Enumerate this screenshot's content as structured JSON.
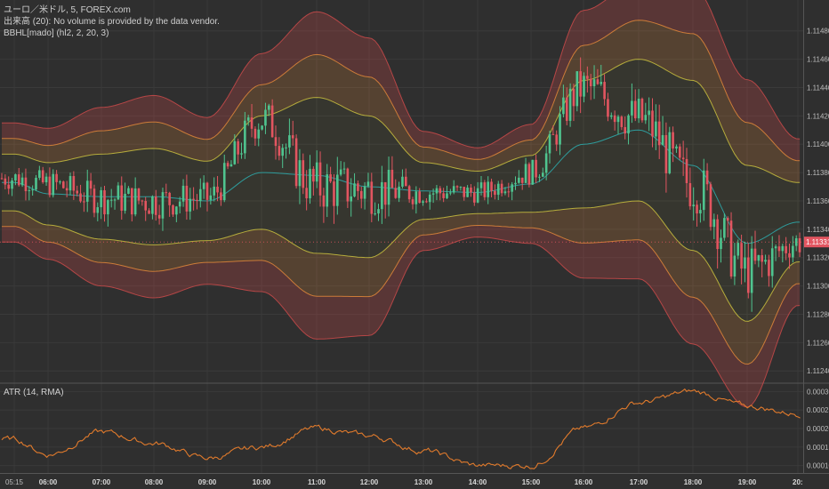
{
  "legend": {
    "symbol": "ユーロ／米ドル, 5, FOREX.com",
    "volume": "出来高 (20): No volume is provided by the data vendor.",
    "indicator": "BBHL[mado] (hl2, 2, 20, 3)",
    "atr": "ATR (14, RMA)"
  },
  "colors": {
    "background": "#2f2f2f",
    "up": "#4fc48f",
    "down": "#e25560",
    "band_inner": "#c9c03e",
    "band_mid": "#e0873a",
    "band_outer": "#c94a4a",
    "basis": "#2e9c9c",
    "atr_line": "#e07a2c"
  },
  "price_axis": {
    "ticks": [
      "1.11480",
      "1.11460",
      "1.11440",
      "1.11420",
      "1.11400",
      "1.11380",
      "1.11360",
      "1.11340",
      "1.11320",
      "1.11300",
      "1.11280",
      "1.11260",
      "1.11240"
    ],
    "current_price": "1.11331"
  },
  "atr_axis": {
    "ticks": [
      "0.00030",
      "0.00025",
      "0.00020",
      "0.00015",
      "0.00010"
    ]
  },
  "time_axis": {
    "labels": [
      "05:15",
      "06:00",
      "07:00",
      "08:00",
      "09:00",
      "10:00",
      "11:00",
      "12:00",
      "13:00",
      "14:00",
      "15:00",
      "16:00",
      "17:00",
      "18:00",
      "19:00",
      "20:"
    ]
  },
  "chart_data": [
    {
      "type": "candlestick",
      "symbol": "EUR/USD 5m",
      "ylim": [
        1.11232,
        1.11498
      ],
      "x": [
        "05:15",
        "06:00",
        "07:00",
        "08:00",
        "09:00",
        "10:00",
        "11:00",
        "12:00",
        "13:00",
        "14:00",
        "15:00",
        "16:00",
        "17:00",
        "18:00",
        "19:00",
        "20:00"
      ],
      "close": [
        1.11376,
        1.11372,
        1.11362,
        1.1136,
        1.11362,
        1.11418,
        1.1137,
        1.11368,
        1.11366,
        1.11366,
        1.1138,
        1.1144,
        1.11418,
        1.11372,
        1.1131,
        1.11331
      ],
      "basis": [
        1.11373,
        1.11365,
        1.11363,
        1.11363,
        1.1136,
        1.1138,
        1.11378,
        1.1137,
        1.11367,
        1.11366,
        1.11372,
        1.114,
        1.1141,
        1.11385,
        1.1133,
        1.11345
      ],
      "band_inner_half_width": [
        0.0002,
        0.00022,
        0.0003,
        0.00034,
        0.00028,
        0.0004,
        0.00055,
        0.0005,
        0.0002,
        0.00015,
        0.0002,
        0.00045,
        0.0005,
        0.0006,
        0.00055,
        0.00028
      ]
    },
    {
      "type": "line",
      "name": "ATR (14, RMA)",
      "ylim": [
        8e-05,
        0.00032
      ],
      "x": [
        "05:15",
        "06:00",
        "07:00",
        "08:00",
        "09:00",
        "10:00",
        "11:00",
        "12:00",
        "13:00",
        "14:00",
        "15:00",
        "16:00",
        "17:00",
        "18:00",
        "19:00",
        "20:00"
      ],
      "values": [
        0.00017,
        0.00013,
        0.00019,
        0.00016,
        0.00012,
        0.00015,
        0.0002,
        0.00018,
        0.00014,
        0.0001,
        0.0001,
        0.0002,
        0.00027,
        0.0003,
        0.00026,
        0.00024
      ]
    }
  ]
}
